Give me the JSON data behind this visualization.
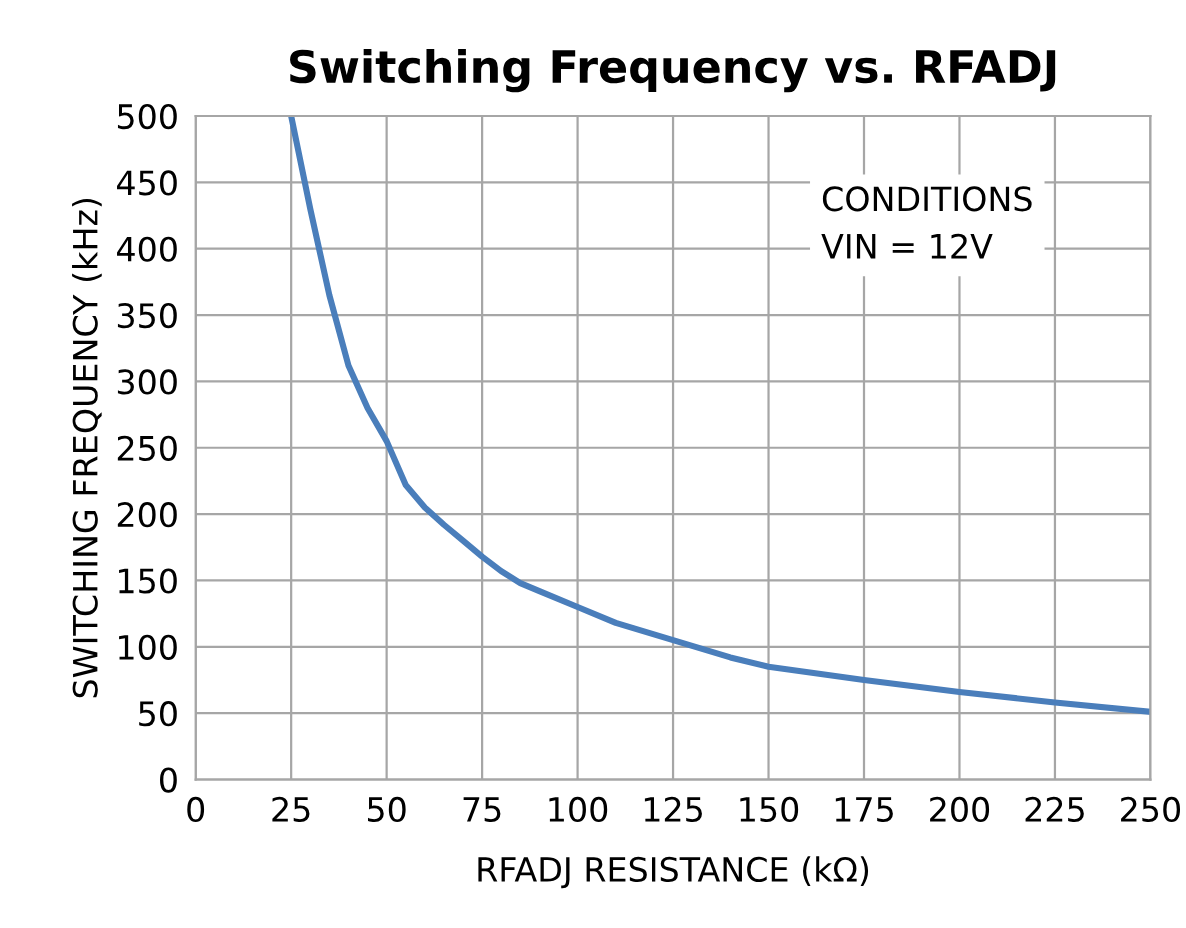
{
  "chart_data": {
    "type": "line",
    "title": "Switching Frequency vs. RFADJ",
    "xlabel": "RFADJ RESISTANCE (kΩ)",
    "ylabel": "SWITCHING FREQUENCY (kHz)",
    "annotations": [
      "CONDITIONS",
      "VIN = 12V"
    ],
    "x": [
      25,
      30,
      35,
      40,
      45,
      50,
      55,
      60,
      65,
      70,
      75,
      80,
      85,
      90,
      100,
      110,
      125,
      140,
      150,
      175,
      200,
      225,
      250
    ],
    "series": [
      {
        "color": "#4a7ebb",
        "values": [
          500,
          430,
          365,
          312,
          280,
          255,
          222,
          205,
          192,
          180,
          168,
          157,
          148,
          142,
          130,
          118,
          105,
          92,
          85,
          75,
          66,
          58,
          51
        ]
      }
    ],
    "xlim": [
      0,
      250
    ],
    "ylim": [
      0,
      500
    ],
    "xticks": [
      0,
      25,
      50,
      75,
      100,
      125,
      150,
      175,
      200,
      225,
      250
    ],
    "yticks": [
      0,
      50,
      100,
      150,
      200,
      250,
      300,
      350,
      400,
      450,
      500
    ],
    "grid": true,
    "marker": "none",
    "line_style": "solid",
    "legend": false
  }
}
